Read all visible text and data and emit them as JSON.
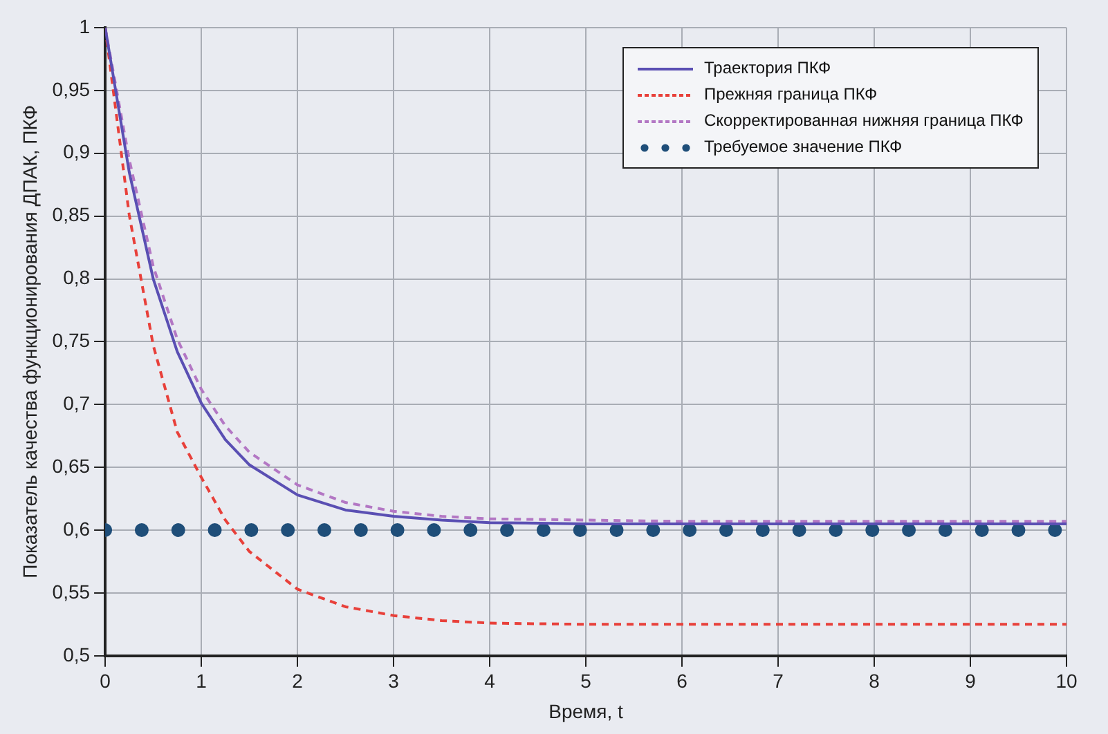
{
  "chart_data": {
    "type": "line",
    "xlabel": "Время, t",
    "ylabel": "Показатель качества функционирования ДПАК, ПКФ",
    "x": [
      0,
      0.25,
      0.5,
      0.75,
      1,
      1.25,
      1.5,
      2,
      2.5,
      3,
      3.5,
      4,
      5,
      6,
      7,
      8,
      9,
      10
    ],
    "xlim": [
      0,
      10
    ],
    "xticks": [
      0,
      1,
      2,
      3,
      4,
      5,
      6,
      7,
      8,
      9,
      10
    ],
    "ylim": [
      0.5,
      1
    ],
    "yticks": [
      {
        "value": 0.5,
        "label": "0,5"
      },
      {
        "value": 0.55,
        "label": "0,55"
      },
      {
        "value": 0.6,
        "label": "0,6"
      },
      {
        "value": 0.65,
        "label": "0,65"
      },
      {
        "value": 0.7,
        "label": "0,7"
      },
      {
        "value": 0.75,
        "label": "0,75"
      },
      {
        "value": 0.8,
        "label": "0,8"
      },
      {
        "value": 0.85,
        "label": "0,85"
      },
      {
        "value": 0.9,
        "label": "0,9"
      },
      {
        "value": 0.95,
        "label": "0,95"
      },
      {
        "value": 1,
        "label": "1"
      }
    ],
    "grid": true,
    "legend": "top right",
    "series": [
      {
        "name": "Траектория ПКФ",
        "color": "#5a4fb3",
        "line_style": "solid",
        "marker": "none",
        "values": [
          1,
          0.885,
          0.8,
          0.742,
          0.701,
          0.672,
          0.652,
          0.628,
          0.616,
          0.611,
          0.608,
          0.606,
          0.605,
          0.605,
          0.605,
          0.605,
          0.605,
          0.605
        ]
      },
      {
        "name": "Прежняя граница ПКФ",
        "color": "#e8403a",
        "line_style": "dashed",
        "marker": "none",
        "values": [
          1,
          0.851,
          0.747,
          0.678,
          0.642,
          0.608,
          0.583,
          0.553,
          0.539,
          0.532,
          0.528,
          0.526,
          0.525,
          0.525,
          0.525,
          0.525,
          0.525,
          0.525
        ]
      },
      {
        "name": "Скорректированная нижняя граница ПКФ",
        "color": "#b377c4",
        "line_style": "dashed",
        "marker": "none",
        "values": [
          1,
          0.895,
          0.81,
          0.752,
          0.712,
          0.683,
          0.662,
          0.636,
          0.622,
          0.615,
          0.611,
          0.609,
          0.608,
          0.607,
          0.607,
          0.607,
          0.607,
          0.607
        ]
      },
      {
        "name": "Требуемое значение ПКФ",
        "type": "scatter",
        "color": "#1f4e79",
        "marker": "circle",
        "x": [
          0,
          0.38,
          0.76,
          1.14,
          1.52,
          1.9,
          2.28,
          2.66,
          3.04,
          3.42,
          3.8,
          4.18,
          4.56,
          4.94,
          5.32,
          5.7,
          6.08,
          6.46,
          6.84,
          7.22,
          7.6,
          7.98,
          8.36,
          8.74,
          9.12,
          9.5,
          9.88
        ],
        "values": [
          0.6,
          0.6,
          0.6,
          0.6,
          0.6,
          0.6,
          0.6,
          0.6,
          0.6,
          0.6,
          0.6,
          0.6,
          0.6,
          0.6,
          0.6,
          0.6,
          0.6,
          0.6,
          0.6,
          0.6,
          0.6,
          0.6,
          0.6,
          0.6,
          0.6,
          0.6,
          0.6
        ]
      }
    ]
  }
}
